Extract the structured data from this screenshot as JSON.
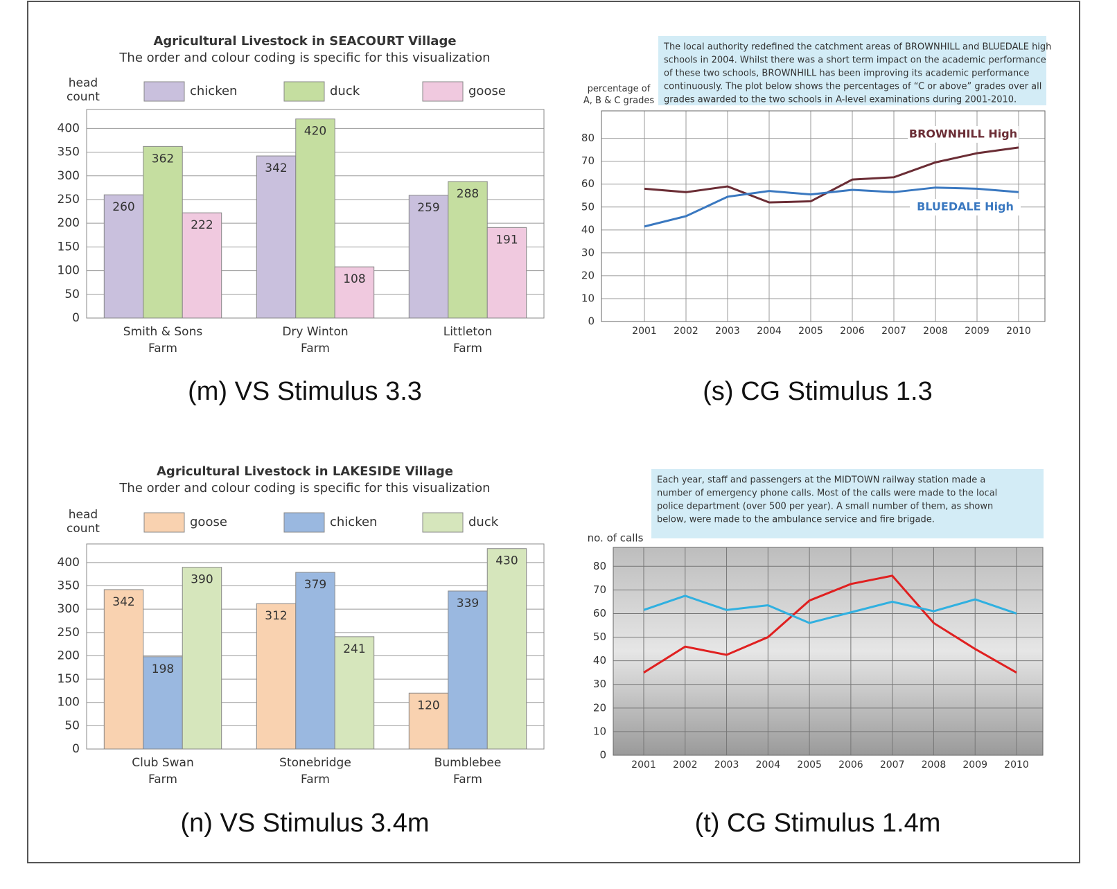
{
  "chart_data": [
    {
      "type": "bar",
      "title": "Agricultural Livestock in SEACOURT Village",
      "subtitle": "The order and colour coding is specific for this visualization",
      "ylabel": "head count",
      "caption": "(m) VS Stimulus 3.3",
      "categories": [
        "Smith & Sons Farm",
        "Dry Winton Farm",
        "Littleton Farm"
      ],
      "series": [
        {
          "name": "chicken",
          "color": "#c9c0dd",
          "values": [
            260,
            342,
            259
          ]
        },
        {
          "name": "duck",
          "color": "#c5dea0",
          "values": [
            362,
            420,
            288
          ]
        },
        {
          "name": "goose",
          "color": "#f0c9df",
          "values": [
            222,
            108,
            191
          ]
        }
      ],
      "ylim": [
        0,
        440
      ],
      "yticks": [
        0,
        50,
        100,
        150,
        200,
        250,
        300,
        350,
        400
      ],
      "grid": true,
      "data_labels": true
    },
    {
      "type": "line",
      "annotation": [
        "The local authority redefined the catchment areas of BROWNHILL and BLUEDALE high",
        "schools in 2004. Whilst there was a short term impact on the academic performance",
        "of these two schools,  BROWNHILL has been improving its academic performance",
        "continuously. The plot below shows the percentages of “C or above” grades over all",
        "grades awarded to the two schools in A-level examinations during 2001-2010."
      ],
      "ylabel": "percentage of A, B & C grades",
      "caption": "(s) CG Stimulus 1.3",
      "categories": [
        "2001",
        "2002",
        "2003",
        "2004",
        "2005",
        "2006",
        "2007",
        "2008",
        "2009",
        "2010"
      ],
      "series": [
        {
          "name": "BROWNHILL High",
          "color": "#6b2d35",
          "values": [
            58,
            56.5,
            59,
            52,
            52.5,
            62,
            63,
            69.5,
            73.5,
            76
          ]
        },
        {
          "name": "BLUEDALE High",
          "color": "#3a78c0",
          "values": [
            41.5,
            46,
            54.5,
            57,
            55.5,
            57.5,
            56.5,
            58.5,
            58,
            56.5
          ]
        }
      ],
      "ylim": [
        0,
        92
      ],
      "yticks": [
        0,
        10,
        20,
        30,
        40,
        50,
        60,
        70,
        80
      ],
      "grid": true
    },
    {
      "type": "bar",
      "title": "Agricultural Livestock in LAKESIDE Village",
      "subtitle": "The order and colour coding is specific for this visualization",
      "ylabel": "head count",
      "caption": "(n) VS Stimulus 3.4m",
      "categories": [
        "Club Swan Farm",
        "Stonebridge Farm",
        "Bumblebee Farm"
      ],
      "series": [
        {
          "name": "goose",
          "color": "#f9d2b0",
          "values": [
            342,
            312,
            120
          ]
        },
        {
          "name": "chicken",
          "color": "#9ab8e0",
          "values": [
            198,
            379,
            339
          ]
        },
        {
          "name": "duck",
          "color": "#d6e6bc",
          "values": [
            390,
            241,
            430
          ]
        }
      ],
      "ylim": [
        0,
        440
      ],
      "yticks": [
        0,
        50,
        100,
        150,
        200,
        250,
        300,
        350,
        400
      ],
      "grid": true,
      "data_labels": true
    },
    {
      "type": "line",
      "annotation": [
        "Each year, staff and passengers at the MIDTOWN railway station made a",
        "number of emergency phone calls. Most of the calls were made to the local",
        "police department (over 500 per year). A small number of them, as shown",
        "below, were made to the ambulance service and fire brigade."
      ],
      "ylabel": "no. of calls",
      "caption": "(t) CG Stimulus 1.4m",
      "categories": [
        "2001",
        "2002",
        "2003",
        "2004",
        "2005",
        "2006",
        "2007",
        "2008",
        "2009",
        "2010"
      ],
      "series": [
        {
          "color": "#e02020",
          "values": [
            35,
            46,
            42.5,
            50,
            65.5,
            72.5,
            76,
            56,
            45,
            35
          ]
        },
        {
          "color": "#30b0e0",
          "values": [
            61.5,
            67.5,
            61.5,
            63.5,
            56,
            60.5,
            65,
            61,
            66,
            60
          ]
        }
      ],
      "ylim": [
        0,
        88
      ],
      "yticks": [
        0,
        10,
        20,
        30,
        40,
        50,
        60,
        70,
        80
      ],
      "grid": true
    }
  ]
}
